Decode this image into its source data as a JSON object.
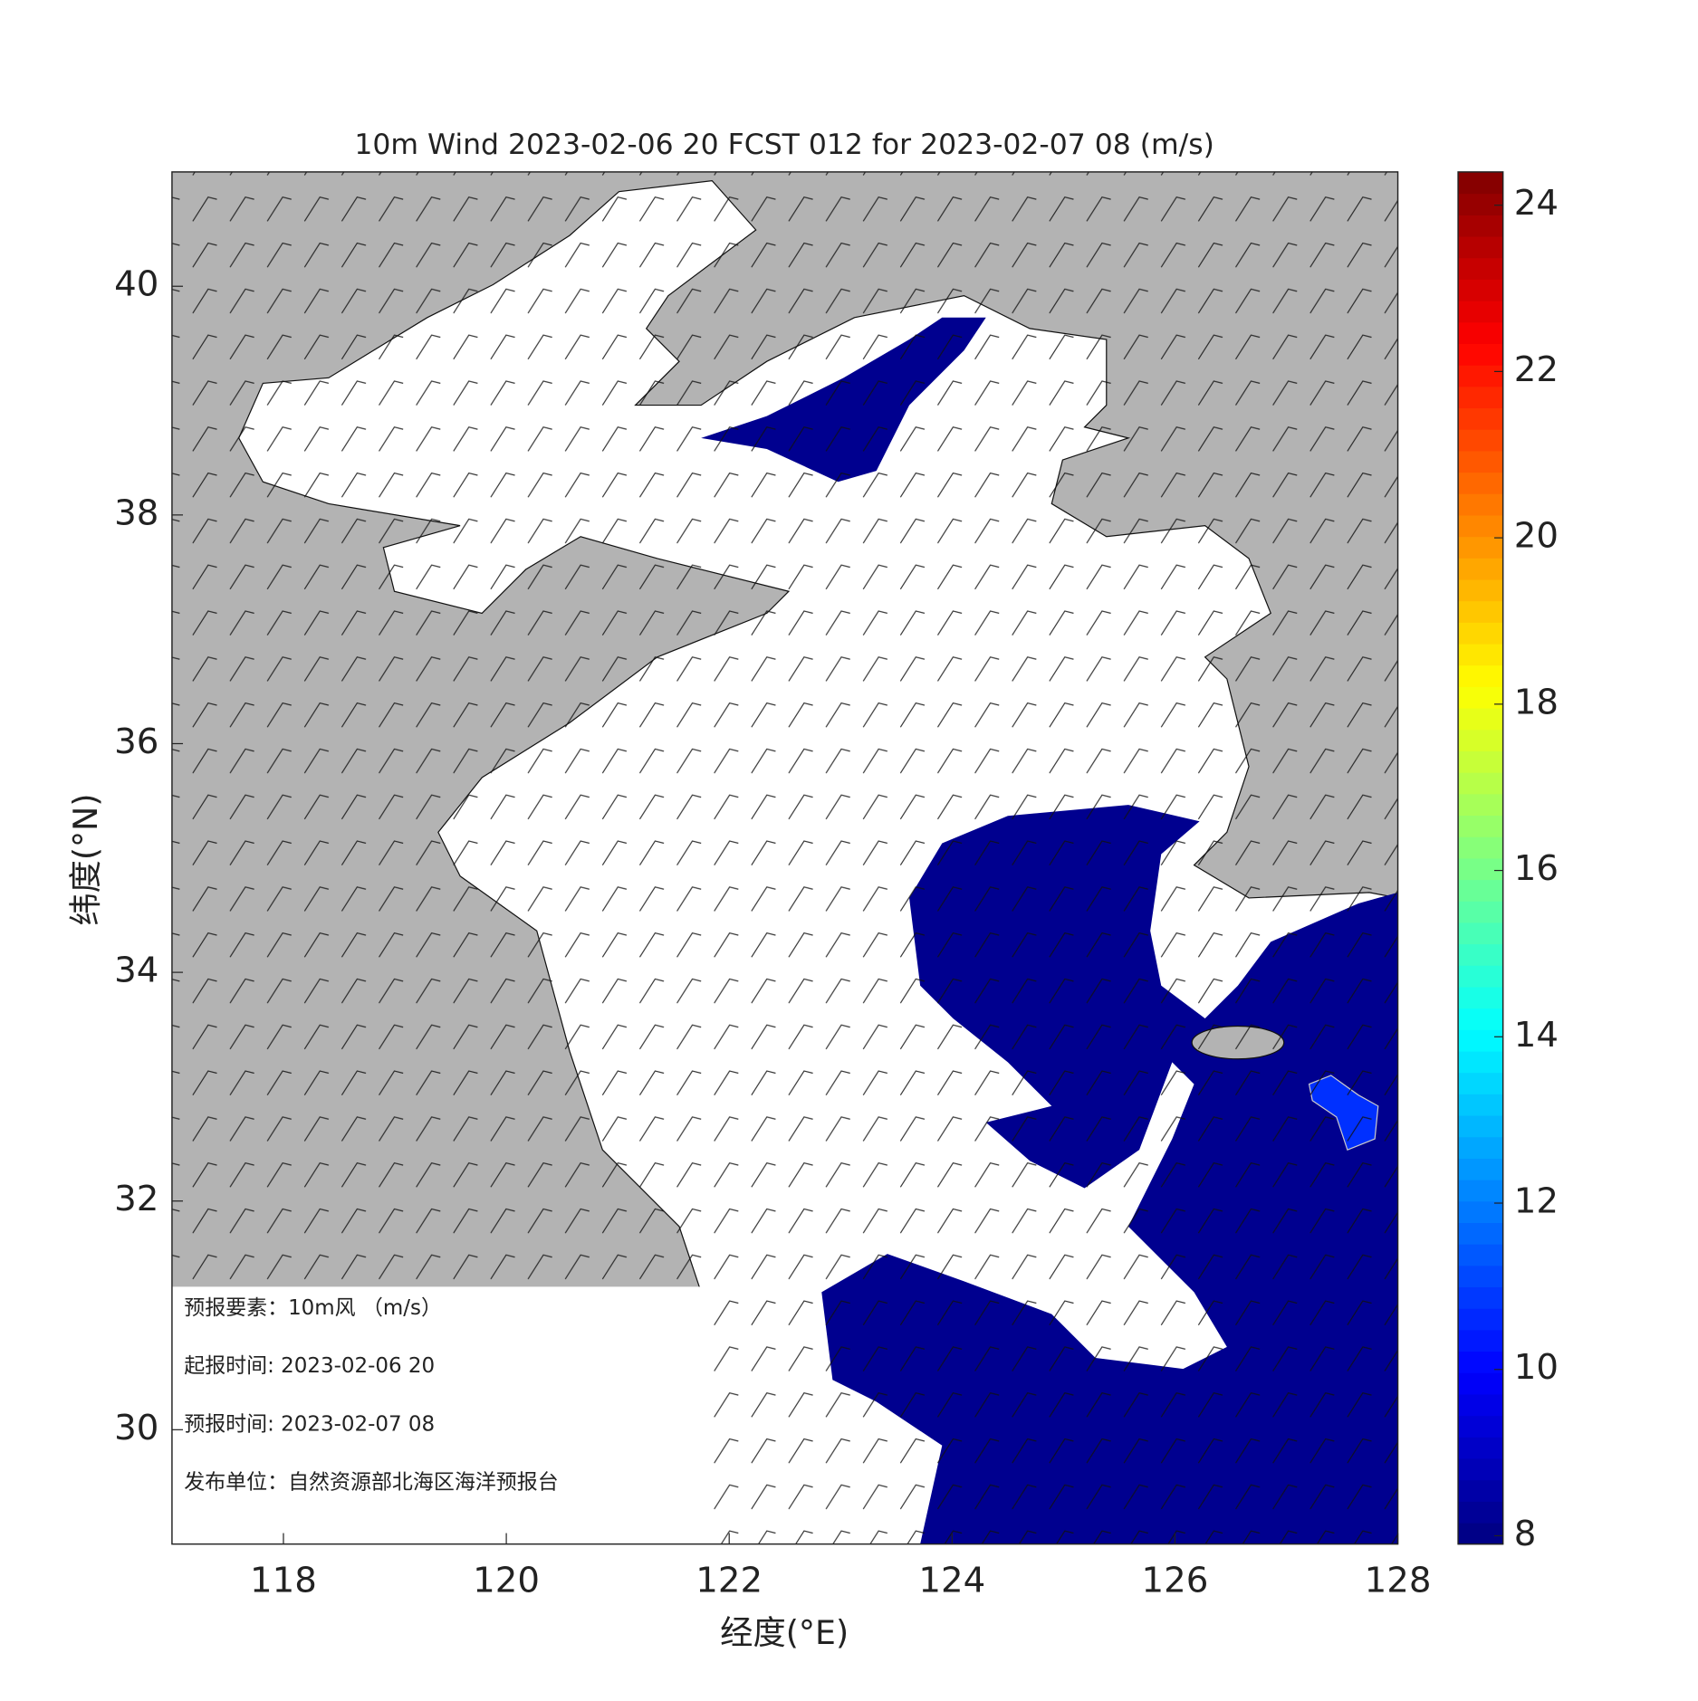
{
  "chart_data": {
    "type": "contour-map",
    "title": "10m Wind 2023-02-06 20 FCST 012 for 2023-02-07 08 (m/s)",
    "x_label": "经度(°E)",
    "y_label": "纬度(°N)",
    "xlim": [
      117,
      128
    ],
    "xticks": [
      118,
      120,
      122,
      124,
      126,
      128
    ],
    "ylim": [
      29,
      41
    ],
    "yticks": [
      30,
      32,
      34,
      36,
      38,
      40
    ],
    "colormap": "jet",
    "clim": [
      7.9,
      24.4
    ],
    "cticks": [
      8,
      10,
      12,
      14,
      16,
      18,
      20,
      22,
      24
    ],
    "info": [
      "预报要素：10m风 （m/s）",
      "起报时间: 2023-02-06 20",
      "预报时间: 2023-02-07 08",
      "发布单位：自然资源部北海区海洋预报台"
    ]
  }
}
